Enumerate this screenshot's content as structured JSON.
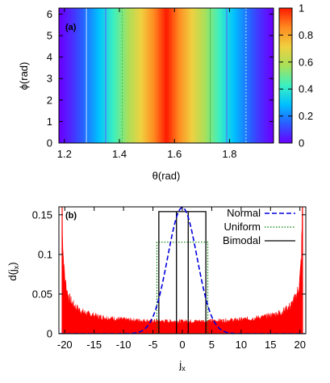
{
  "chart_data": [
    {
      "type": "heatmap",
      "panel_label": "(a)",
      "xlabel": "θ(rad)",
      "ylabel": "ϕ(rad)",
      "xlim": [
        1.18,
        1.96
      ],
      "ylim": [
        0,
        6.28
      ],
      "x_ticks": [
        "1.2",
        "1.4",
        "1.6",
        "1.8"
      ],
      "x_tick_values": [
        1.2,
        1.4,
        1.6,
        1.8
      ],
      "y_ticks": [
        "0",
        "1",
        "2",
        "3",
        "4",
        "5",
        "6"
      ],
      "y_tick_values": [
        0,
        1,
        2,
        3,
        4,
        5,
        6
      ],
      "colorbar_ticks": [
        "0",
        "0.2",
        "0.4",
        "0.6",
        "0.8",
        "1"
      ],
      "colorbar_tick_values": [
        0,
        0.2,
        0.4,
        0.6,
        0.8,
        1
      ],
      "colormap": [
        "#6a00ff",
        "#2a5cff",
        "#00c0ff",
        "#3cf0c0",
        "#a8e05a",
        "#f0d040",
        "#ff8a20",
        "#ff1a00"
      ],
      "field": "cos^2 of offset from pi/2 scaled, peak at theta = 1.5708, independent of phi",
      "peak_theta": 1.5708,
      "contour_lines_theta": [
        1.28,
        1.35,
        1.41,
        1.73,
        1.79,
        1.86
      ],
      "contour_colors": [
        "#c0e8ff",
        "#6060ff",
        "#50c050",
        "#50c050",
        "#6060ff",
        "#c0e8ff"
      ],
      "grid": false
    },
    {
      "type": "area",
      "panel_label": "(b)",
      "xlabel": "jx",
      "xlabel_main": "j",
      "xlabel_sub": "x",
      "ylabel_main": "d(j",
      "ylabel_sub": "x",
      "ylabel_end": ")",
      "xlim": [
        -21,
        21
      ],
      "ylim": [
        0,
        0.16
      ],
      "x_ticks": [
        "-20",
        "-15",
        "-10",
        "-5",
        "0",
        "5",
        "10",
        "15",
        "20"
      ],
      "x_tick_values": [
        -20,
        -15,
        -10,
        -5,
        0,
        5,
        10,
        15,
        20
      ],
      "y_ticks": [
        "0",
        "0.05",
        "0.1",
        "0.15"
      ],
      "y_tick_values": [
        0,
        0.05,
        0.1,
        0.15
      ],
      "grid": false,
      "legend_placement": "top-right",
      "histogram": {
        "color": "#ff0000",
        "R": 20.5,
        "baseline_value": 0.0155,
        "description": "arcsine-like distribution spiking at |jx| = 20"
      },
      "series": [
        {
          "name": "Normal",
          "style": "dashed",
          "color": "#0000dd",
          "kind": "gaussian",
          "mean": 0,
          "sigma": 2.5,
          "peak": 0.159
        },
        {
          "name": "Uniform",
          "style": "dotted",
          "color": "#008000",
          "kind": "box",
          "x": [
            -4.33,
            4.33
          ],
          "height": 0.1155
        },
        {
          "name": "Bimodal",
          "style": "solid",
          "color": "#000000",
          "kind": "two-box",
          "boxes": [
            [
              -4.0,
              -1.0
            ],
            [
              1.0,
              4.0
            ]
          ],
          "inner": [
            -1.0,
            1.0
          ],
          "height": 0.154
        }
      ]
    }
  ]
}
